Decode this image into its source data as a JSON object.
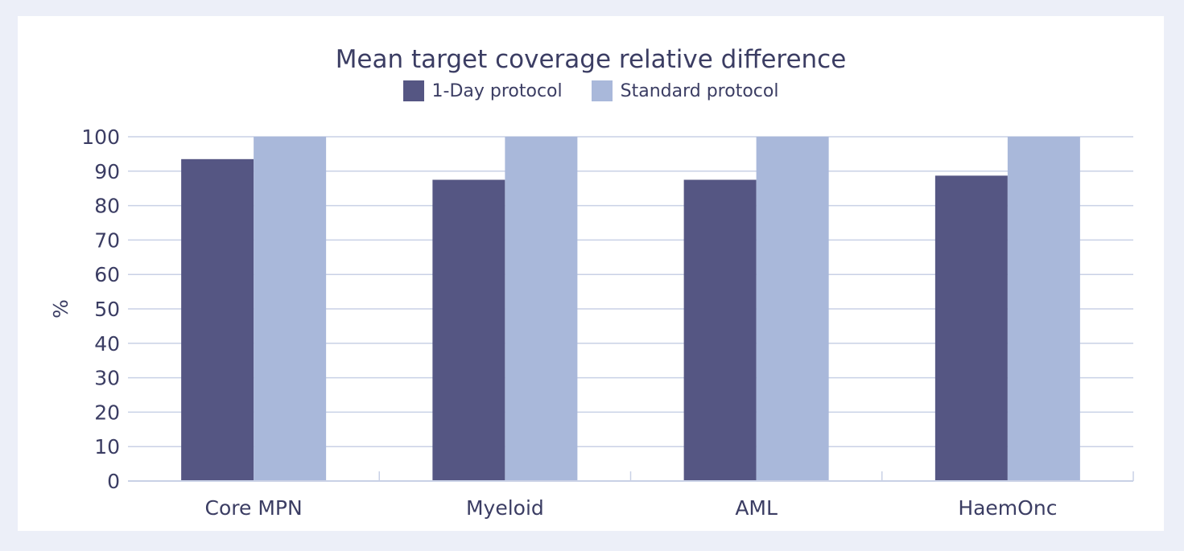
{
  "chart_data": {
    "type": "bar",
    "title": "Mean target coverage relative difference",
    "ylabel": "%",
    "xlabel": "",
    "categories": [
      "Core MPN",
      "Myeloid",
      "AML",
      "HaemOnc"
    ],
    "series": [
      {
        "name": "1-Day protocol",
        "color": "#555683",
        "values": [
          93.5,
          87.5,
          87.5,
          88.7
        ]
      },
      {
        "name": "Standard protocol",
        "color": "#a9b8da",
        "values": [
          100,
          100,
          100,
          100
        ]
      }
    ],
    "ylim": [
      0,
      100
    ],
    "yticks": [
      "0",
      "10",
      "20",
      "30",
      "40",
      "50",
      "60",
      "70",
      "80",
      "90",
      "100"
    ],
    "grid": true,
    "legend_position": "top-center"
  }
}
